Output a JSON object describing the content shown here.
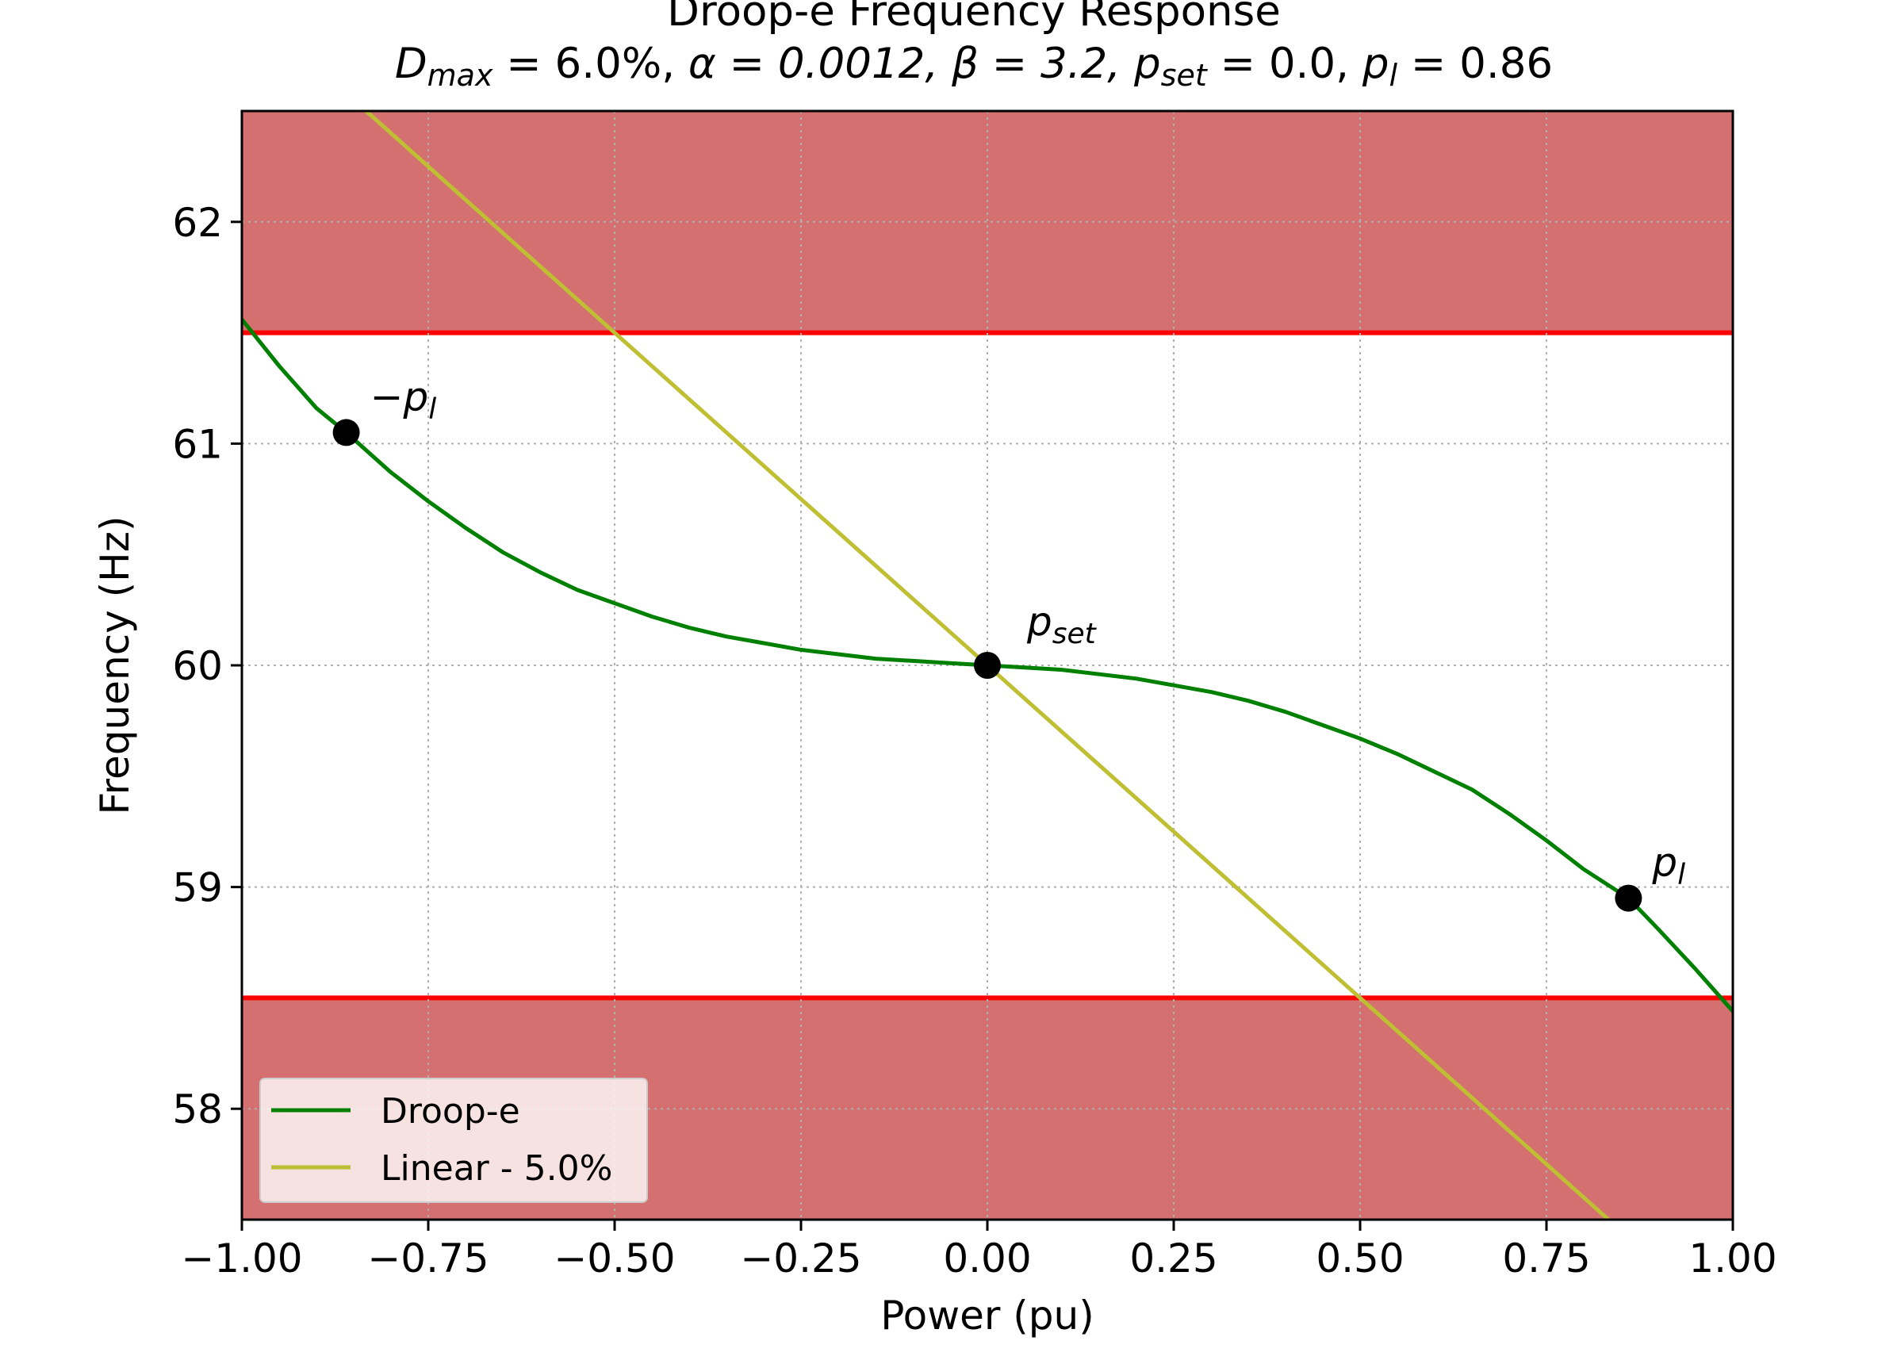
{
  "chart_data": {
    "type": "line",
    "title": "Droop-e Frequency Response",
    "subtitle": {
      "text": "Dmax = 6.0%, α = 0.0012, β = 3.2, pset = 0.0, pl = 0.86",
      "d_var": "D",
      "d_sub": "max",
      "d_val": " = 6.0%, ",
      "alpha": "α = 0.0012, ",
      "beta": "β = 3.2, ",
      "pset_var": "p",
      "pset_sub": "set",
      "pset_val": " = 0.0, ",
      "pl_var": "p",
      "pl_sub": "l",
      "pl_val": " = 0.86"
    },
    "xlabel": "Power (pu)",
    "ylabel": "Frequency (Hz)",
    "xlim": [
      -1.0,
      1.0
    ],
    "ylim": [
      57.5,
      62.5
    ],
    "xticks": [
      -1.0,
      -0.75,
      -0.5,
      -0.25,
      0.0,
      0.25,
      0.5,
      0.75,
      1.0
    ],
    "xtick_labels": [
      "−1.00",
      "−0.75",
      "−0.50",
      "−0.25",
      "0.00",
      "0.25",
      "0.50",
      "0.75",
      "1.00"
    ],
    "yticks": [
      58,
      59,
      60,
      61,
      62
    ],
    "ytick_labels": [
      "58",
      "59",
      "60",
      "61",
      "62"
    ],
    "grid": true,
    "legend_position": "lower-left",
    "bands": [
      {
        "y_from": 61.5,
        "y_to": 62.5,
        "color": "#d47070",
        "boundary_color": "#ff0000"
      },
      {
        "y_from": 57.5,
        "y_to": 58.5,
        "color": "#d47070",
        "boundary_color": "#ff0000"
      }
    ],
    "series": [
      {
        "name": "Droop-e",
        "color": "#008000",
        "x": [
          -1.0,
          -0.95,
          -0.9,
          -0.86,
          -0.8,
          -0.75,
          -0.7,
          -0.65,
          -0.6,
          -0.55,
          -0.5,
          -0.45,
          -0.4,
          -0.35,
          -0.3,
          -0.25,
          -0.2,
          -0.15,
          -0.1,
          -0.05,
          0.0,
          0.05,
          0.1,
          0.15,
          0.2,
          0.25,
          0.3,
          0.35,
          0.4,
          0.45,
          0.5,
          0.55,
          0.6,
          0.65,
          0.7,
          0.75,
          0.8,
          0.86,
          0.9,
          0.95,
          1.0
        ],
        "y": [
          61.56,
          61.35,
          61.16,
          61.05,
          60.87,
          60.74,
          60.62,
          60.51,
          60.42,
          60.34,
          60.28,
          60.22,
          60.17,
          60.13,
          60.1,
          60.07,
          60.05,
          60.03,
          60.02,
          60.01,
          60.0,
          59.99,
          59.98,
          59.96,
          59.94,
          59.91,
          59.88,
          59.84,
          59.79,
          59.73,
          59.67,
          59.6,
          59.52,
          59.44,
          59.33,
          59.21,
          59.08,
          58.95,
          58.81,
          58.63,
          58.44
        ]
      },
      {
        "name": "Linear - 5.0%",
        "color": "#bfbf33",
        "x": [
          -1.0,
          1.0
        ],
        "y": [
          63.0,
          57.0
        ]
      }
    ],
    "markers": [
      {
        "x": -0.86,
        "y": 61.05,
        "label": "−p",
        "label_sub": "l"
      },
      {
        "x": 0.0,
        "y": 60.0,
        "label": "p",
        "label_sub": "set"
      },
      {
        "x": 0.86,
        "y": 58.95,
        "label": "p",
        "label_sub": "l"
      }
    ]
  }
}
